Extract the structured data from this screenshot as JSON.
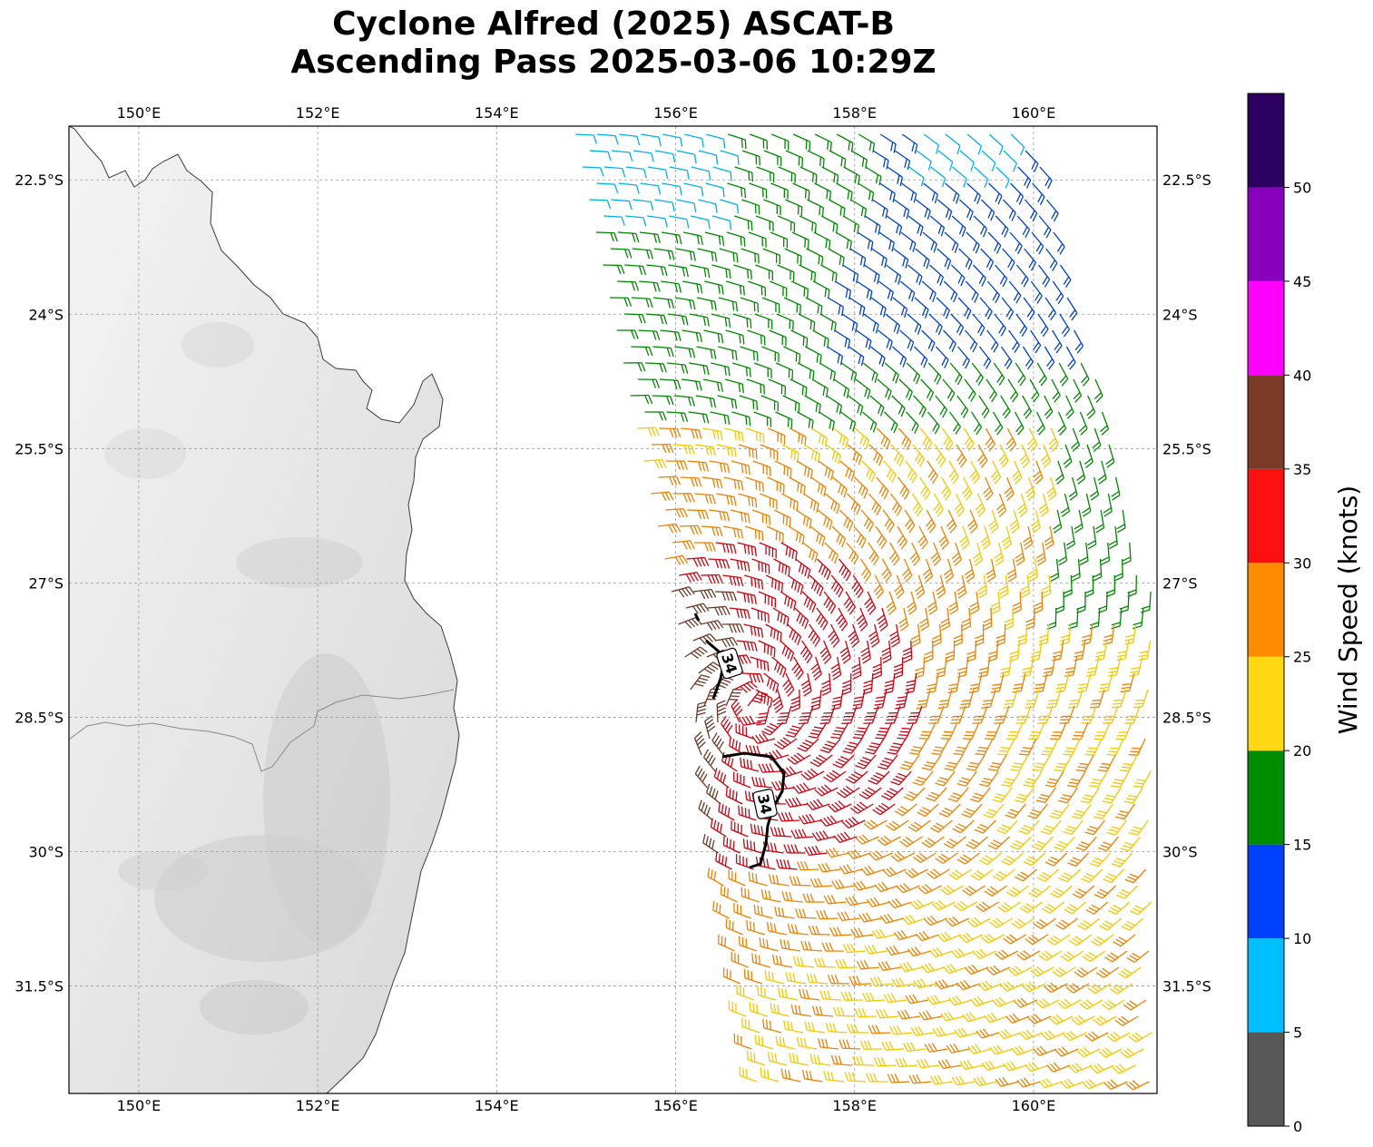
{
  "title_line1": "Cyclone Alfred (2025) ASCAT-B",
  "title_line2": "Ascending Pass 2025-03-06 10:29Z",
  "map": {
    "lon_range": [
      149.22,
      161.38
    ],
    "lat_range": [
      -32.7,
      -21.9
    ],
    "lon_ticks": [
      150,
      152,
      154,
      156,
      158,
      160
    ],
    "lon_tick_labels": [
      "150°E",
      "152°E",
      "154°E",
      "156°E",
      "158°E",
      "160°E"
    ],
    "lat_ticks": [
      -22.5,
      -24,
      -25.5,
      -27,
      -28.5,
      -30,
      -31.5
    ],
    "lat_tick_labels": [
      "22.5°S",
      "24°S",
      "25.5°S",
      "27°S",
      "28.5°S",
      "30°S",
      "31.5°S"
    ],
    "gridlines": true,
    "background": "grayscale terrain over land, white ocean",
    "contour_label": "34",
    "contour_level_knots": 34,
    "contour_label_count": 2,
    "storm_center": {
      "lon": 157.0,
      "lat": -28.6
    }
  },
  "colorbar": {
    "label": "Wind Speed (knots)",
    "ticks": [
      0,
      5,
      10,
      15,
      20,
      25,
      30,
      35,
      40,
      45,
      50
    ],
    "tick_labels": [
      "0",
      "5",
      "10",
      "15",
      "20",
      "25",
      "30",
      "35",
      "40",
      "45",
      "50"
    ],
    "max": 55,
    "bins": [
      {
        "min": 0,
        "max": 5,
        "color": "#575757"
      },
      {
        "min": 5,
        "max": 10,
        "color": "#00bfff"
      },
      {
        "min": 10,
        "max": 15,
        "color": "#0040ff"
      },
      {
        "min": 15,
        "max": 20,
        "color": "#008c00"
      },
      {
        "min": 20,
        "max": 25,
        "color": "#ffd814"
      },
      {
        "min": 25,
        "max": 30,
        "color": "#ff8c00"
      },
      {
        "min": 30,
        "max": 35,
        "color": "#ff1010"
      },
      {
        "min": 35,
        "max": 40,
        "color": "#7b3a28"
      },
      {
        "min": 40,
        "max": 45,
        "color": "#ff00ff"
      },
      {
        "min": 45,
        "max": 50,
        "color": "#8800bb"
      },
      {
        "min": 50,
        "max": 55,
        "color": "#2b005e"
      }
    ],
    "barb_colors": {
      "dark_red": "#d00010",
      "brown": "#6b3a2a",
      "orange": "#f08000",
      "yellow": "#f5c800",
      "green": "#008800",
      "blue": "#0040d0",
      "sky": "#00b0f0"
    }
  }
}
